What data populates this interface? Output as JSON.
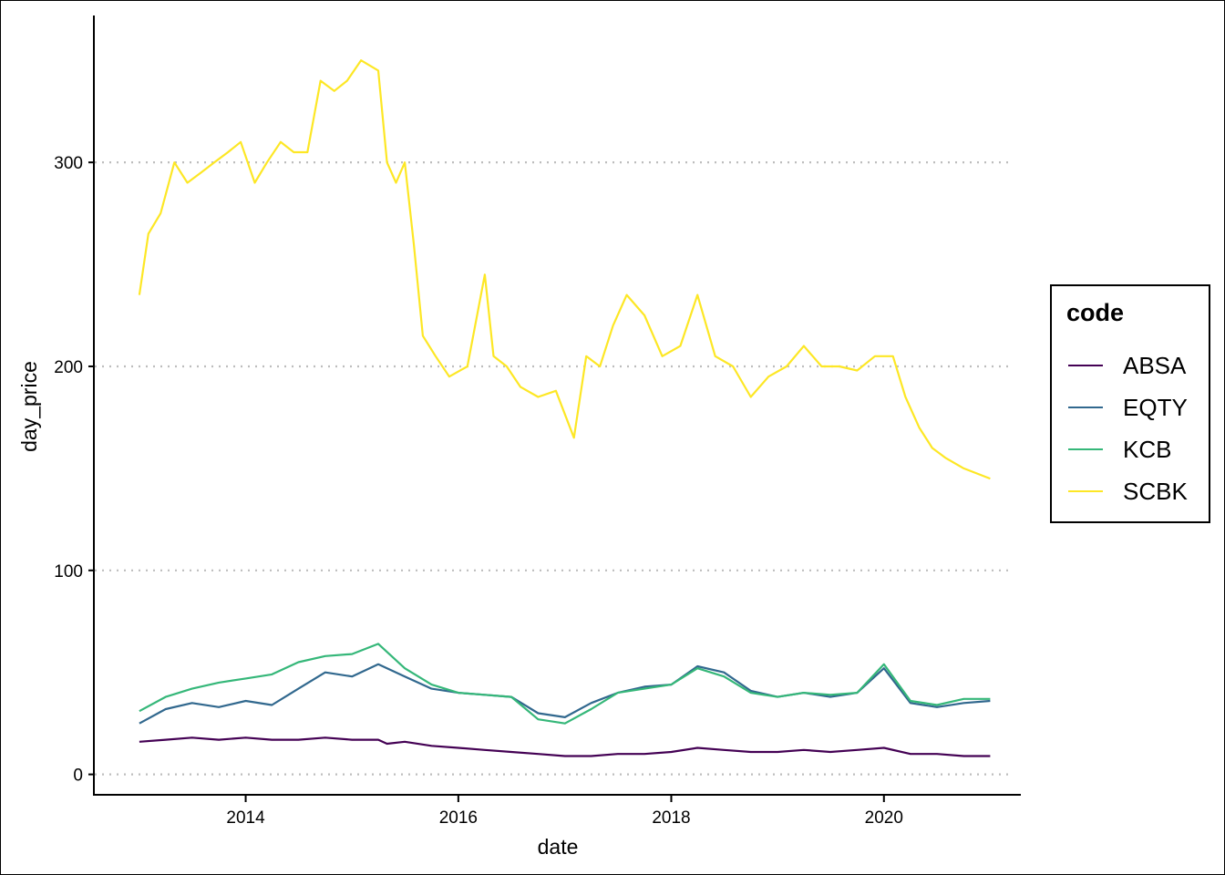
{
  "chart_data": {
    "type": "line",
    "xlabel": "date",
    "ylabel": "day_price",
    "xlim": [
      "2012-08-01",
      "2021-04-15"
    ],
    "ylim": [
      -10,
      372
    ],
    "x_ticks": [
      "2014",
      "2016",
      "2018",
      "2020"
    ],
    "y_ticks": [
      0,
      100,
      200,
      300
    ],
    "grid": "horizontal dotted major lines",
    "legend": {
      "title": "code",
      "position": "right"
    },
    "series": [
      {
        "name": "ABSA",
        "color": "#440154",
        "x": [
          "2013-01-01",
          "2013-04-01",
          "2013-07-01",
          "2013-10-01",
          "2014-01-01",
          "2014-04-01",
          "2014-07-01",
          "2014-10-01",
          "2015-01-01",
          "2015-04-01",
          "2015-05-01",
          "2015-07-01",
          "2015-10-01",
          "2016-01-01",
          "2016-04-01",
          "2016-07-01",
          "2016-10-01",
          "2017-01-01",
          "2017-04-01",
          "2017-07-01",
          "2017-10-01",
          "2018-01-01",
          "2018-04-01",
          "2018-07-01",
          "2018-10-01",
          "2019-01-01",
          "2019-04-01",
          "2019-07-01",
          "2019-10-01",
          "2020-01-01",
          "2020-04-01",
          "2020-07-01",
          "2020-10-01",
          "2020-12-31"
        ],
        "y": [
          16,
          17,
          18,
          17,
          18,
          17,
          17,
          18,
          17,
          17,
          15,
          16,
          14,
          13,
          12,
          11,
          10,
          9,
          9,
          10,
          10,
          11,
          13,
          12,
          11,
          11,
          12,
          11,
          12,
          13,
          10,
          10,
          9,
          9
        ]
      },
      {
        "name": "EQTY",
        "color": "#31688e",
        "x": [
          "2013-01-01",
          "2013-04-01",
          "2013-07-01",
          "2013-10-01",
          "2014-01-01",
          "2014-04-01",
          "2014-07-01",
          "2014-10-01",
          "2015-01-01",
          "2015-04-01",
          "2015-07-01",
          "2015-10-01",
          "2016-01-01",
          "2016-04-01",
          "2016-07-01",
          "2016-10-01",
          "2017-01-01",
          "2017-04-01",
          "2017-07-01",
          "2017-10-01",
          "2018-01-01",
          "2018-04-01",
          "2018-07-01",
          "2018-10-01",
          "2019-01-01",
          "2019-04-01",
          "2019-07-01",
          "2019-10-01",
          "2020-01-01",
          "2020-04-01",
          "2020-07-01",
          "2020-10-01",
          "2020-12-31"
        ],
        "y": [
          25,
          32,
          35,
          33,
          36,
          34,
          42,
          50,
          48,
          54,
          48,
          42,
          40,
          39,
          38,
          30,
          28,
          35,
          40,
          43,
          44,
          53,
          50,
          41,
          38,
          40,
          38,
          40,
          52,
          35,
          33,
          35,
          36
        ]
      },
      {
        "name": "KCB",
        "color": "#35b779",
        "x": [
          "2013-01-01",
          "2013-04-01",
          "2013-07-01",
          "2013-10-01",
          "2014-01-01",
          "2014-04-01",
          "2014-07-01",
          "2014-10-01",
          "2015-01-01",
          "2015-04-01",
          "2015-07-01",
          "2015-10-01",
          "2016-01-01",
          "2016-04-01",
          "2016-07-01",
          "2016-10-01",
          "2017-01-01",
          "2017-04-01",
          "2017-07-01",
          "2017-10-01",
          "2018-01-01",
          "2018-04-01",
          "2018-07-01",
          "2018-10-01",
          "2019-01-01",
          "2019-04-01",
          "2019-07-01",
          "2019-10-01",
          "2020-01-01",
          "2020-04-01",
          "2020-07-01",
          "2020-10-01",
          "2020-12-31"
        ],
        "y": [
          31,
          38,
          42,
          45,
          47,
          49,
          55,
          58,
          59,
          64,
          52,
          44,
          40,
          39,
          38,
          27,
          25,
          32,
          40,
          42,
          44,
          52,
          48,
          40,
          38,
          40,
          39,
          40,
          54,
          36,
          34,
          37,
          37
        ]
      },
      {
        "name": "SCBK",
        "color": "#fde725",
        "x": [
          "2013-01-01",
          "2013-02-01",
          "2013-03-15",
          "2013-05-01",
          "2013-06-15",
          "2013-08-01",
          "2013-09-15",
          "2013-11-01",
          "2013-12-15",
          "2014-02-01",
          "2014-03-15",
          "2014-05-01",
          "2014-06-15",
          "2014-08-01",
          "2014-09-15",
          "2014-11-01",
          "2014-12-15",
          "2015-02-01",
          "2015-04-01",
          "2015-05-01",
          "2015-06-01",
          "2015-07-01",
          "2015-08-01",
          "2015-09-01",
          "2015-10-15",
          "2015-12-01",
          "2016-02-01",
          "2016-04-01",
          "2016-05-01",
          "2016-06-15",
          "2016-08-01",
          "2016-10-01",
          "2016-12-01",
          "2017-02-01",
          "2017-03-15",
          "2017-05-01",
          "2017-06-15",
          "2017-08-01",
          "2017-10-01",
          "2017-12-01",
          "2018-02-01",
          "2018-04-01",
          "2018-06-01",
          "2018-08-01",
          "2018-10-01",
          "2018-12-01",
          "2019-02-01",
          "2019-04-01",
          "2019-06-01",
          "2019-08-01",
          "2019-10-01",
          "2019-12-01",
          "2020-02-01",
          "2020-03-15",
          "2020-05-01",
          "2020-06-15",
          "2020-08-01",
          "2020-10-01",
          "2020-12-31"
        ],
        "y": [
          235,
          265,
          275,
          300,
          290,
          295,
          300,
          305,
          310,
          290,
          300,
          310,
          305,
          305,
          340,
          335,
          340,
          350,
          345,
          300,
          290,
          300,
          260,
          215,
          205,
          195,
          200,
          245,
          205,
          200,
          190,
          185,
          188,
          165,
          205,
          200,
          220,
          235,
          225,
          205,
          210,
          235,
          205,
          200,
          185,
          195,
          200,
          210,
          200,
          200,
          198,
          205,
          205,
          185,
          170,
          160,
          155,
          150,
          145
        ]
      }
    ]
  }
}
